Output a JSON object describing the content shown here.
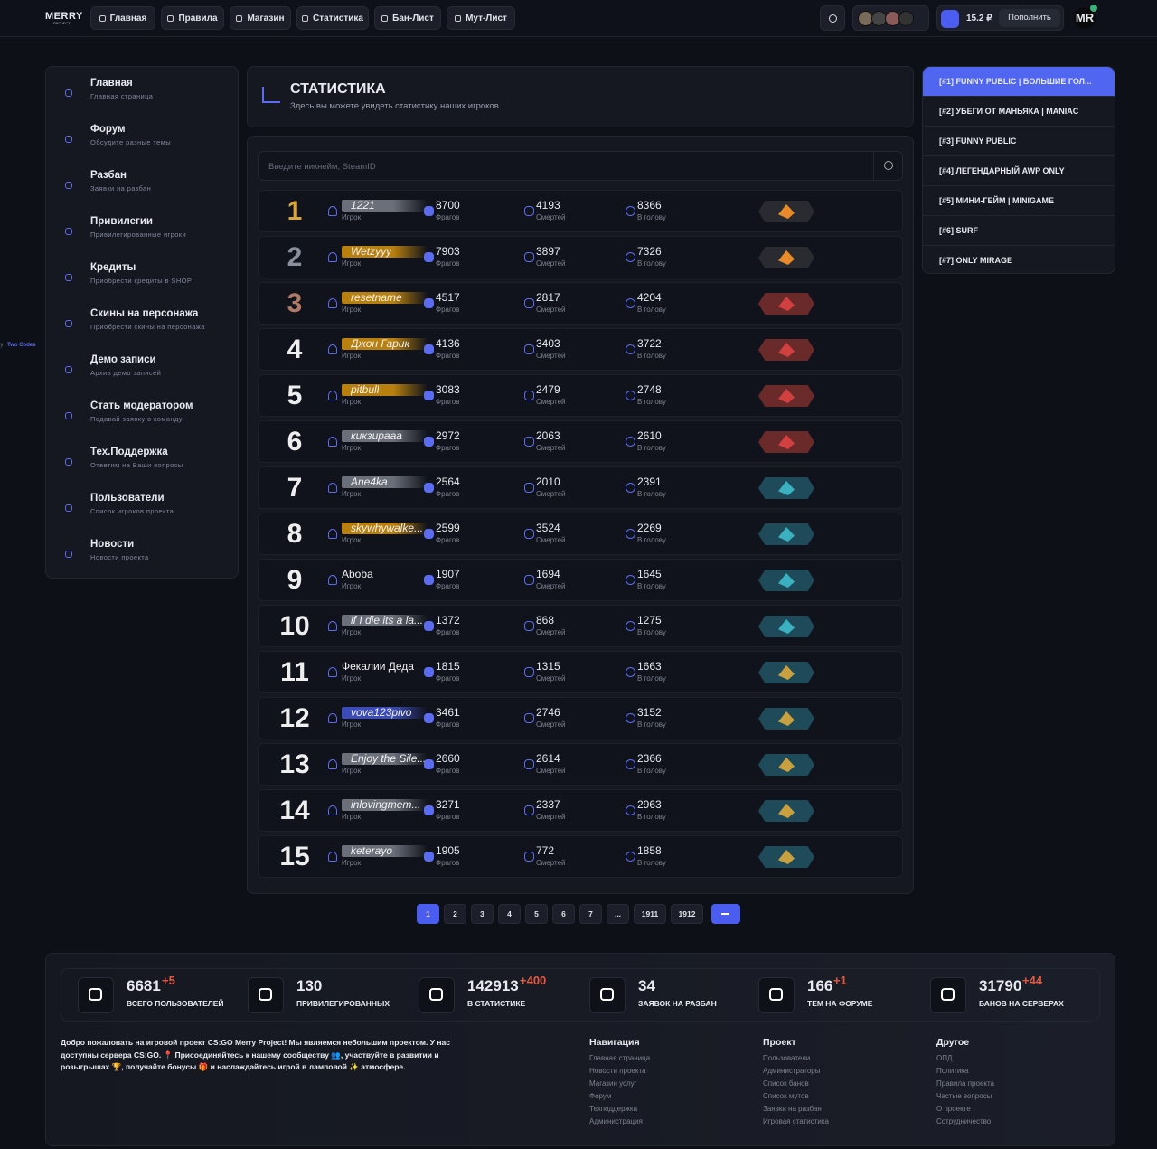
{
  "header": {
    "logo": "MERRY",
    "logo_sub": "PROJECT",
    "nav": [
      "Главная",
      "Правила",
      "Магазин",
      "Статистика",
      "Бан-Лист",
      "Мут-Лист"
    ],
    "balance": "15.2 ₽",
    "topup": "Пополнить",
    "avatar": "MR"
  },
  "credit": {
    "by": "by",
    "name": "Two Codes"
  },
  "sidebar": [
    {
      "title": "Главная",
      "subtitle": "Главная страница"
    },
    {
      "title": "Форум",
      "subtitle": "Обсудите разные темы"
    },
    {
      "title": "Разбан",
      "subtitle": "Заявки на разбан"
    },
    {
      "title": "Привилегии",
      "subtitle": "Привилегированные игроки"
    },
    {
      "title": "Кредиты",
      "subtitle": "Приобрести кредиты в SHOP"
    },
    {
      "title": "Скины на персонажа",
      "subtitle": "Приобрести скины на персонажа"
    },
    {
      "title": "Демо записи",
      "subtitle": "Архив демо записей"
    },
    {
      "title": "Стать модератором",
      "subtitle": "Подавай заявку в команду"
    },
    {
      "title": "Тех.Поддержка",
      "subtitle": "Ответим на Ваши вопросы"
    },
    {
      "title": "Пользователи",
      "subtitle": "Список игроков проекта"
    },
    {
      "title": "Новости",
      "subtitle": "Новости проекта"
    }
  ],
  "stats": {
    "title": "СТАТИСТИКА",
    "subtitle": "Здесь вы можете увидеть статистику наших игроков.",
    "search_placeholder": "Введите никнейм, SteamID",
    "labels": {
      "player": "Игрок",
      "kills": "Фрагов",
      "deaths": "Смертей",
      "headshots": "В голову"
    },
    "rows": [
      {
        "rank": 1,
        "name": "1221",
        "highlight": "#6b6f7a",
        "kills": 8700,
        "deaths": 4193,
        "headshots": 8366
      },
      {
        "rank": 2,
        "name": "Wetzyyy",
        "highlight": "#b8800f",
        "kills": 7903,
        "deaths": 3897,
        "headshots": 7326
      },
      {
        "rank": 3,
        "name": "resetname",
        "highlight": "#b8800f",
        "kills": 4517,
        "deaths": 2817,
        "headshots": 4204
      },
      {
        "rank": 4,
        "name": "Джон Гарик",
        "highlight": "#b8800f",
        "kills": 4136,
        "deaths": 3403,
        "headshots": 3722
      },
      {
        "rank": 5,
        "name": "pitbull",
        "highlight": "#b8800f",
        "kills": 3083,
        "deaths": 2479,
        "headshots": 2748
      },
      {
        "rank": 6,
        "name": "кикзирааа",
        "highlight": "#6b6f7a",
        "kills": 2972,
        "deaths": 2063,
        "headshots": 2610
      },
      {
        "rank": 7,
        "name": "Ane4ka",
        "highlight": "#6b6f7a",
        "kills": 2564,
        "deaths": 2010,
        "headshots": 2391
      },
      {
        "rank": 8,
        "name": "skywhywalke...",
        "highlight": "#b8800f",
        "kills": 2599,
        "deaths": 3524,
        "headshots": 2269
      },
      {
        "rank": 9,
        "name": "Aboba",
        "highlight": null,
        "kills": 1907,
        "deaths": 1694,
        "headshots": 1645
      },
      {
        "rank": 10,
        "name": "if I die its a la...",
        "highlight": "#6b6f7a",
        "kills": 1372,
        "deaths": 868,
        "headshots": 1275
      },
      {
        "rank": 11,
        "name": "Фекалии Деда",
        "highlight": null,
        "kills": 1815,
        "deaths": 1315,
        "headshots": 1663
      },
      {
        "rank": 12,
        "name": "vova123pivo",
        "highlight": "#3b4bb8",
        "kills": 3461,
        "deaths": 2746,
        "headshots": 3152
      },
      {
        "rank": 13,
        "name": "Enjoy the Sile...",
        "highlight": "#6b6f7a",
        "kills": 2660,
        "deaths": 2614,
        "headshots": 2366
      },
      {
        "rank": 14,
        "name": "inlovingmem...",
        "highlight": "#6b6f7a",
        "kills": 3271,
        "deaths": 2337,
        "headshots": 2963
      },
      {
        "rank": 15,
        "name": "keterayo",
        "highlight": "#6b6f7a",
        "kills": 1905,
        "deaths": 772,
        "headshots": 1858
      }
    ]
  },
  "pagination": [
    1,
    2,
    3,
    4,
    5,
    6,
    7,
    "...",
    1911,
    1912
  ],
  "servers": [
    "[#1] FUNNY PUBLIC | БОЛЬШИЕ ГОЛ...",
    "[#2] УБЕГИ ОТ МАНЬЯКА | MANIAC",
    "[#3] FUNNY PUBLIC",
    "[#4] ЛЕГЕНДАРНЫЙ AWP ONLY",
    "[#5] МИНИ-ГЕЙМ | MINIGAME",
    "[#6] SURF",
    "[#7] ONLY MIRAGE"
  ],
  "footer": {
    "totals": [
      {
        "value": 6681,
        "delta": "+5",
        "label": "ВСЕГО ПОЛЬЗОВАТЕЛЕЙ"
      },
      {
        "value": 130,
        "delta": null,
        "label": "ПРИВИЛЕГИРОВАННЫХ"
      },
      {
        "value": 142913,
        "delta": "+400",
        "label": "В СТАТИСТИКЕ"
      },
      {
        "value": 34,
        "delta": null,
        "label": "ЗАЯВОК НА РАЗБАН"
      },
      {
        "value": 166,
        "delta": "+1",
        "label": "ТЕМ НА ФОРУМЕ"
      },
      {
        "value": 31790,
        "delta": "+44",
        "label": "БАНОВ НА СЕРВЕРАХ"
      }
    ],
    "about": "Добро пожаловать на игровой проект CS:GO Merry Project! Мы являемся небольшим проектом. У нас доступны сервера CS:GO. 📍 Присоединяйтесь к нашему сообществу 👥, участвуйте в развитии и розыгрышах 🏆, получайте бонусы 🎁 и наслаждайтесь игрой в ламповой ✨ атмосфере.",
    "columns": [
      {
        "title": "Навигация",
        "links": [
          "Главная страница",
          "Новости проекта",
          "Магазин услуг",
          "Форум",
          "Техподдержка",
          "Администрация"
        ]
      },
      {
        "title": "Проект",
        "links": [
          "Пользователи",
          "Администраторы",
          "Список банов",
          "Список мутов",
          "Заявки на разбан",
          "Игровая статистика"
        ]
      },
      {
        "title": "Другое",
        "links": [
          "ОПД",
          "Политика",
          "Правила проекта",
          "Частые вопросы",
          "О проекте",
          "Сотрудничество"
        ]
      }
    ]
  }
}
